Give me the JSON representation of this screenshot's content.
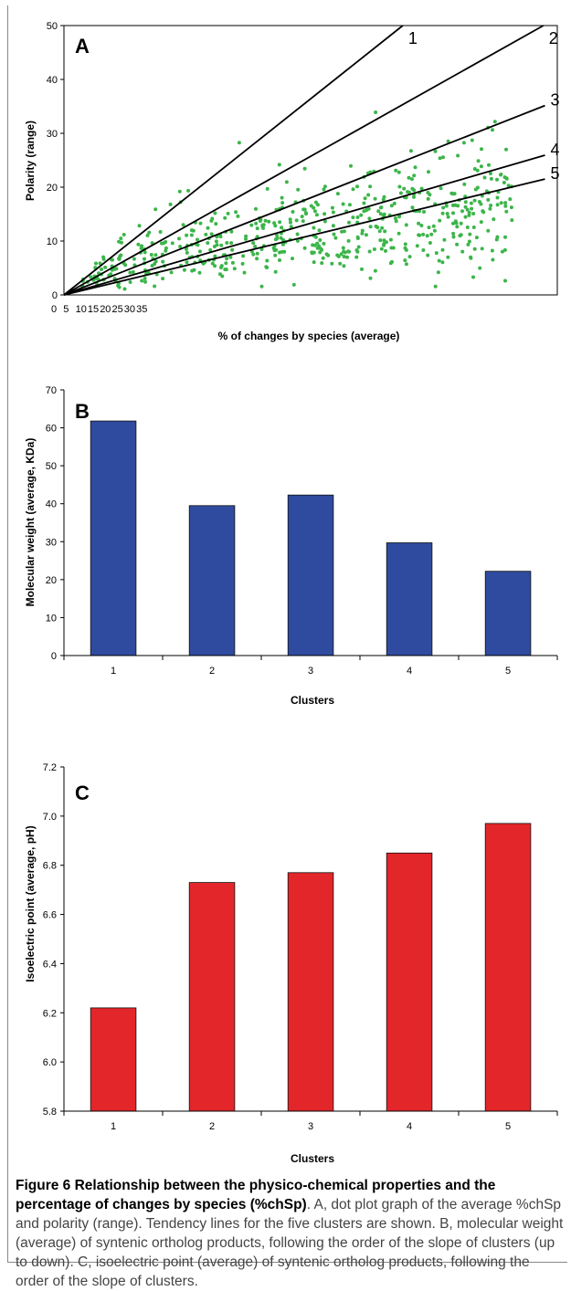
{
  "chart_data": [
    {
      "panel": "A",
      "type": "scatter",
      "xlabel": "% of changes by species (average)",
      "ylabel": "Polarity (range)",
      "x_tick_labels": [
        "0",
        "5",
        "10",
        "15",
        "20",
        "25",
        "30",
        "35"
      ],
      "y_tick_labels": [
        "0",
        "10",
        "20",
        "30",
        "40",
        "50"
      ],
      "ylim": [
        0,
        50
      ],
      "xlim": [
        0,
        35
      ],
      "grid": false,
      "point_color": "#3cb54a",
      "trend_lines": [
        {
          "name": "1",
          "slope": 2.08
        },
        {
          "name": "2",
          "slope": 1.47
        },
        {
          "name": "3",
          "slope": 1.03
        },
        {
          "name": "4",
          "slope": 0.76
        },
        {
          "name": "5",
          "slope": 0.63
        }
      ],
      "point_count": 560,
      "seed": 11
    },
    {
      "panel": "B",
      "type": "bar",
      "categories": [
        "1",
        "2",
        "3",
        "4",
        "5"
      ],
      "values": [
        61.8,
        39.5,
        42.3,
        29.7,
        22.2
      ],
      "xlabel": "Clusters",
      "ylabel": "Molecular weight (average, KDa)",
      "ylim": [
        0,
        70
      ],
      "y_tick_labels": [
        "0",
        "10",
        "20",
        "30",
        "40",
        "50",
        "60",
        "70"
      ],
      "bar_color": "#2f4b9f"
    },
    {
      "panel": "C",
      "type": "bar",
      "categories": [
        "1",
        "2",
        "3",
        "4",
        "5"
      ],
      "values": [
        6.22,
        6.73,
        6.77,
        6.85,
        6.97
      ],
      "xlabel": "Clusters",
      "ylabel": "Isoelectric point (average, pH)",
      "ylim": [
        5.8,
        7.2
      ],
      "y_tick_labels": [
        "5.8",
        "6.0",
        "6.2",
        "6.4",
        "6.6",
        "6.8",
        "7.0",
        "7.2"
      ],
      "bar_color": "#e3262a"
    }
  ],
  "caption": {
    "title": "Figure 6 Relationship between the physico-chemical properties and the percentage of changes by species (%chSp)",
    "text": ". A, dot plot graph of the average %chSp and polarity (range). Tendency lines for the five clusters are shown. B, molecular weight (average) of syntenic ortholog products, following the order of the slope of clusters (up to down). C, isoelectric point (average) of syntenic ortholog products, following the order of the slope of clusters."
  }
}
